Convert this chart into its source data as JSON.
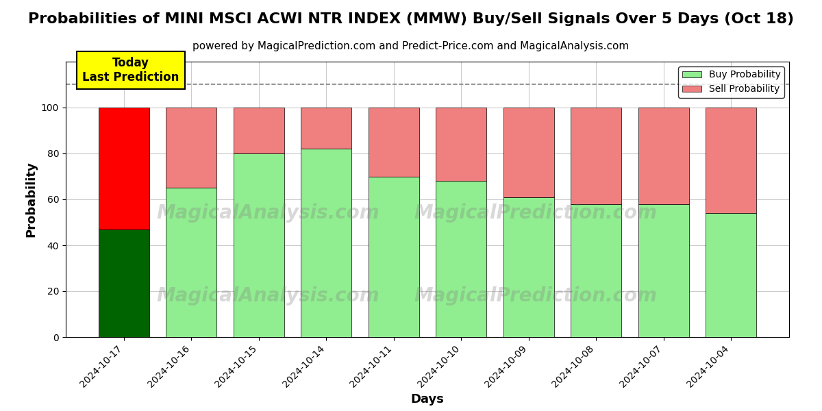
{
  "title": "Probabilities of MINI MSCI ACWI NTR INDEX (MMW) Buy/Sell Signals Over 5 Days (Oct 18)",
  "subtitle": "powered by MagicalPrediction.com and Predict-Price.com and MagicalAnalysis.com",
  "xlabel": "Days",
  "ylabel": "Probability",
  "dates": [
    "2024-10-17",
    "2024-10-16",
    "2024-10-15",
    "2024-10-14",
    "2024-10-11",
    "2024-10-10",
    "2024-10-09",
    "2024-10-08",
    "2024-10-07",
    "2024-10-04"
  ],
  "buy_values": [
    47,
    65,
    80,
    82,
    70,
    68,
    61,
    58,
    58,
    54
  ],
  "sell_values": [
    53,
    35,
    20,
    18,
    30,
    32,
    39,
    42,
    42,
    46
  ],
  "buy_color_today": "#006400",
  "sell_color_today": "#ff0000",
  "buy_color_rest": "#90EE90",
  "sell_color_rest": "#F08080",
  "bar_width": 0.75,
  "ylim": [
    0,
    120
  ],
  "yticks": [
    0,
    20,
    40,
    60,
    80,
    100
  ],
  "dashed_line_y": 110,
  "annotation_text": "Today\nLast Prediction",
  "annotation_bg": "#ffff00",
  "watermark1": "MagicalAnalysis.com",
  "watermark2": "MagicalPrediction.com",
  "legend_buy_label": "Buy Probability",
  "legend_sell_label": "Sell Probability",
  "title_fontsize": 16,
  "subtitle_fontsize": 11,
  "axis_label_fontsize": 13,
  "tick_fontsize": 10,
  "background_color": "#ffffff",
  "grid_color": "#cccccc"
}
